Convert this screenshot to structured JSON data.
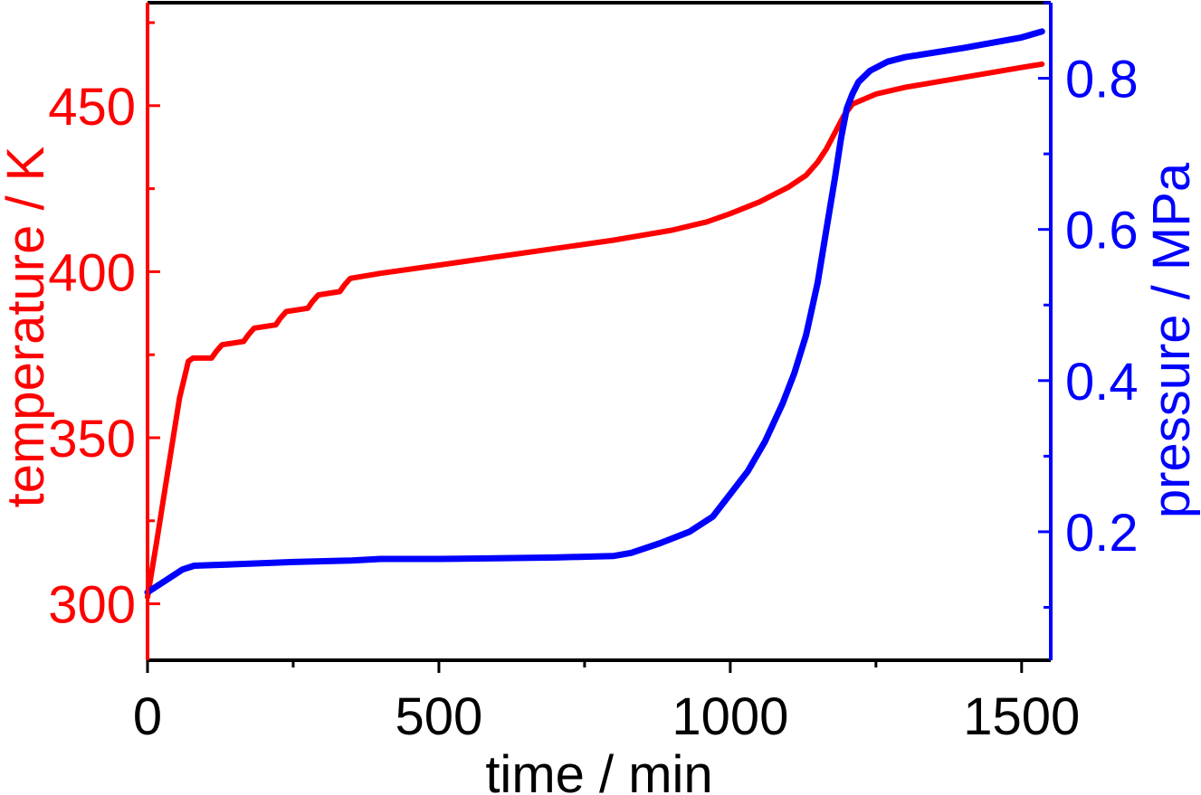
{
  "colors": {
    "temperature": "#ff0000",
    "pressure": "#0000ff",
    "frame": "#000000"
  },
  "chart_data": {
    "type": "line",
    "title": "",
    "xlabel": "time / min",
    "ylabel_left": "temperature / K",
    "ylabel_right": "pressure / MPa",
    "xlim": [
      0,
      1550
    ],
    "ylim_left": [
      283,
      481
    ],
    "ylim_right": [
      0.03,
      0.9
    ],
    "x_ticks": [
      "0",
      "500",
      "1000",
      "1500"
    ],
    "y_left_ticks": [
      "300",
      "350",
      "400",
      "450"
    ],
    "y_right_ticks": [
      "0.2",
      "0.4",
      "0.6",
      "0.8"
    ],
    "grid": false,
    "series": [
      {
        "axis": "left",
        "color": "#ff0000",
        "x": [
          0,
          15,
          35,
          55,
          70,
          78,
          110,
          118,
          128,
          165,
          173,
          183,
          220,
          228,
          238,
          275,
          283,
          293,
          330,
          338,
          348,
          400,
          500,
          600,
          700,
          800,
          900,
          960,
          1000,
          1050,
          1100,
          1130,
          1150,
          1165,
          1180,
          1195,
          1210,
          1250,
          1300,
          1400,
          1500,
          1535
        ],
        "y": [
          302,
          318,
          340,
          362,
          373,
          374,
          374,
          376,
          378,
          379,
          381,
          383,
          384,
          386,
          388,
          389,
          391,
          393,
          394,
          396,
          398,
          399.5,
          402,
          404.5,
          407,
          409.5,
          412.5,
          415,
          417.5,
          421,
          425.5,
          429,
          433,
          437,
          442,
          447,
          450.5,
          453.5,
          455.5,
          458.5,
          461.5,
          462.5
        ]
      },
      {
        "axis": "right",
        "color": "#0000ff",
        "x": [
          0,
          30,
          60,
          80,
          150,
          250,
          350,
          400,
          500,
          600,
          700,
          800,
          830,
          880,
          930,
          970,
          1000,
          1030,
          1060,
          1090,
          1110,
          1130,
          1150,
          1165,
          1180,
          1190,
          1200,
          1210,
          1220,
          1240,
          1270,
          1300,
          1400,
          1500,
          1535
        ],
        "y": [
          0.12,
          0.135,
          0.15,
          0.155,
          0.157,
          0.16,
          0.162,
          0.164,
          0.164,
          0.165,
          0.166,
          0.168,
          0.172,
          0.185,
          0.2,
          0.22,
          0.25,
          0.28,
          0.32,
          0.37,
          0.41,
          0.46,
          0.53,
          0.6,
          0.67,
          0.72,
          0.76,
          0.78,
          0.795,
          0.81,
          0.822,
          0.828,
          0.84,
          0.854,
          0.862
        ]
      }
    ]
  }
}
